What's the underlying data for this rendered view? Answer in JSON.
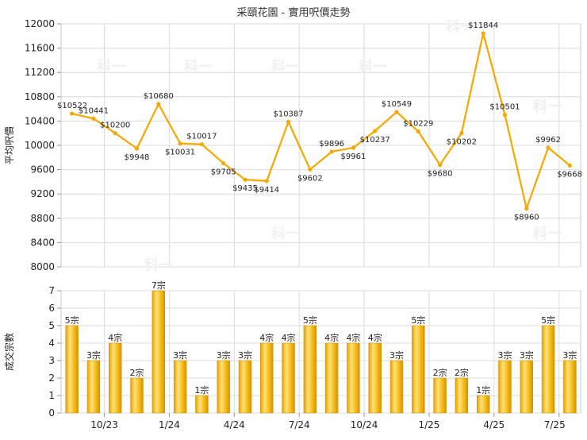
{
  "chart_data": [
    {
      "type": "line",
      "title": "采頤花園 - 實用呎價走勢",
      "ylabel": "平均呎價",
      "ylim": [
        8000,
        12000
      ],
      "yticks": [
        8000,
        8400,
        8800,
        9200,
        9600,
        10000,
        10400,
        10800,
        11200,
        11600,
        12000
      ],
      "x_tick_labels": [
        "10/23",
        "1/24",
        "4/24",
        "7/24",
        "10/24",
        "1/25",
        "4/25",
        "7/25"
      ],
      "grid": true,
      "color": "#f5a800",
      "values": [
        10522,
        10441,
        10200,
        9948,
        10680,
        10031,
        10017,
        9705,
        9435,
        9414,
        10387,
        9602,
        9896,
        9961,
        10237,
        10549,
        10229,
        9680,
        10202,
        11844,
        10501,
        8960,
        9962,
        9668
      ],
      "labels": [
        "$10522",
        "$10441",
        "$10200",
        "$9948",
        "$10680",
        "$10031",
        "$10017",
        "$9705",
        "$9435",
        "$9414",
        "$10387",
        "$9602",
        "$9896",
        "$9961",
        "$10237",
        "$10549",
        "$10229",
        "$9680",
        "$10202",
        "$11844",
        "$10501",
        "$8960",
        "$9962",
        "$9668"
      ]
    },
    {
      "type": "bar",
      "ylabel": "成交宗數",
      "ylim": [
        0,
        7
      ],
      "yticks": [
        0,
        1,
        2,
        3,
        4,
        5,
        6,
        7
      ],
      "x_tick_labels": [
        "10/23",
        "1/24",
        "4/24",
        "7/24",
        "10/24",
        "1/25",
        "4/25",
        "7/25"
      ],
      "grid": true,
      "color": "#f5b800",
      "values": [
        5,
        3,
        4,
        2,
        7,
        3,
        1,
        3,
        3,
        4,
        4,
        5,
        4,
        4,
        4,
        3,
        5,
        2,
        2,
        1,
        3,
        3,
        5,
        3
      ],
      "labels": [
        "5宗",
        "3宗",
        "4宗",
        "2宗",
        "7宗",
        "3宗",
        "1宗",
        "3宗",
        "3宗",
        "4宗",
        "4宗",
        "5宗",
        "4宗",
        "4宗",
        "4宗",
        "3宗",
        "5宗",
        "2宗",
        "2宗",
        "1宗",
        "3宗",
        "3宗",
        "5宗",
        "3宗"
      ]
    }
  ],
  "watermark": "科一"
}
